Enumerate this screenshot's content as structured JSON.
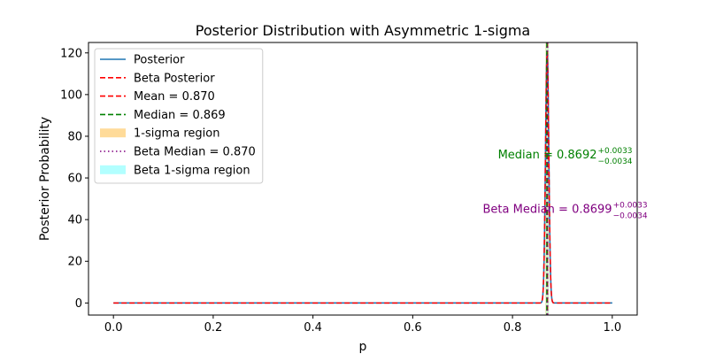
{
  "chart_data": {
    "type": "line",
    "title": "Posterior Distribution with Asymmetric 1-sigma",
    "xlabel": "p",
    "ylabel": "Posterior Probability",
    "xlim": [
      -0.05,
      1.05
    ],
    "ylim": [
      -5.8,
      125
    ],
    "xticks": [
      0.0,
      0.2,
      0.4,
      0.6,
      0.8,
      1.0
    ],
    "xtick_labels": [
      "0.0",
      "0.2",
      "0.4",
      "0.6",
      "0.8",
      "1.0"
    ],
    "yticks": [
      0,
      20,
      40,
      60,
      80,
      100,
      120
    ],
    "ytick_labels": [
      "0",
      "20",
      "40",
      "60",
      "80",
      "100",
      "120"
    ],
    "grid": false,
    "legend_position": "upper-left",
    "distribution": {
      "peak_location": 0.8695,
      "peak_height": 120,
      "width_sigma": 0.0033
    },
    "series": [
      {
        "name": "Posterior",
        "style": "solid",
        "color": "#1f77b4"
      },
      {
        "name": "Beta Posterior",
        "style": "dashed",
        "color": "#ff0000"
      }
    ],
    "vertical_lines": [
      {
        "name": "Mean = 0.870",
        "x": 0.87,
        "style": "dashed",
        "color": "#ff0000"
      },
      {
        "name": "Median = 0.869",
        "x": 0.869,
        "style": "dashed",
        "color": "#008000"
      },
      {
        "name": "Beta Median = 0.870",
        "x": 0.87,
        "style": "dotted",
        "color": "#800080"
      }
    ],
    "regions": [
      {
        "name": "1-sigma region",
        "x0": 0.8658,
        "x1": 0.8725,
        "color": "#ffa500",
        "opacity": 0.3
      },
      {
        "name": "Beta 1-sigma region",
        "x0": 0.8665,
        "x1": 0.8732,
        "color": "#00ffff",
        "opacity": 0.2
      }
    ],
    "legend": [
      {
        "label": "Posterior",
        "kind": "line",
        "style": "solid",
        "color": "#1f77b4"
      },
      {
        "label": "Beta Posterior",
        "kind": "line",
        "style": "dashed",
        "color": "#ff0000"
      },
      {
        "label": "Mean = 0.870",
        "kind": "line",
        "style": "dashed",
        "color": "#ff0000"
      },
      {
        "label": "Median = 0.869",
        "kind": "line",
        "style": "dashed",
        "color": "#008000"
      },
      {
        "label": "1-sigma region",
        "kind": "patch",
        "color": "#ffa500",
        "opacity": 0.3
      },
      {
        "label": "Beta Median = 0.870",
        "kind": "line",
        "style": "dotted",
        "color": "#800080"
      },
      {
        "label": "Beta 1-sigma region",
        "kind": "patch",
        "color": "#00ffff",
        "opacity": 0.2
      }
    ],
    "annotations": [
      {
        "name": "median-annotation",
        "prefix": "Median = 0.8692",
        "sup": "+0.0033",
        "sub": "−0.0034",
        "color": "#008000",
        "x": 0.87,
        "y": 71
      },
      {
        "name": "beta-median-annotation",
        "prefix": "Beta Median = 0.8699",
        "sup": "+0.0033",
        "sub": "−0.0034",
        "color": "#800080",
        "x": 0.87,
        "y": 45
      }
    ]
  }
}
